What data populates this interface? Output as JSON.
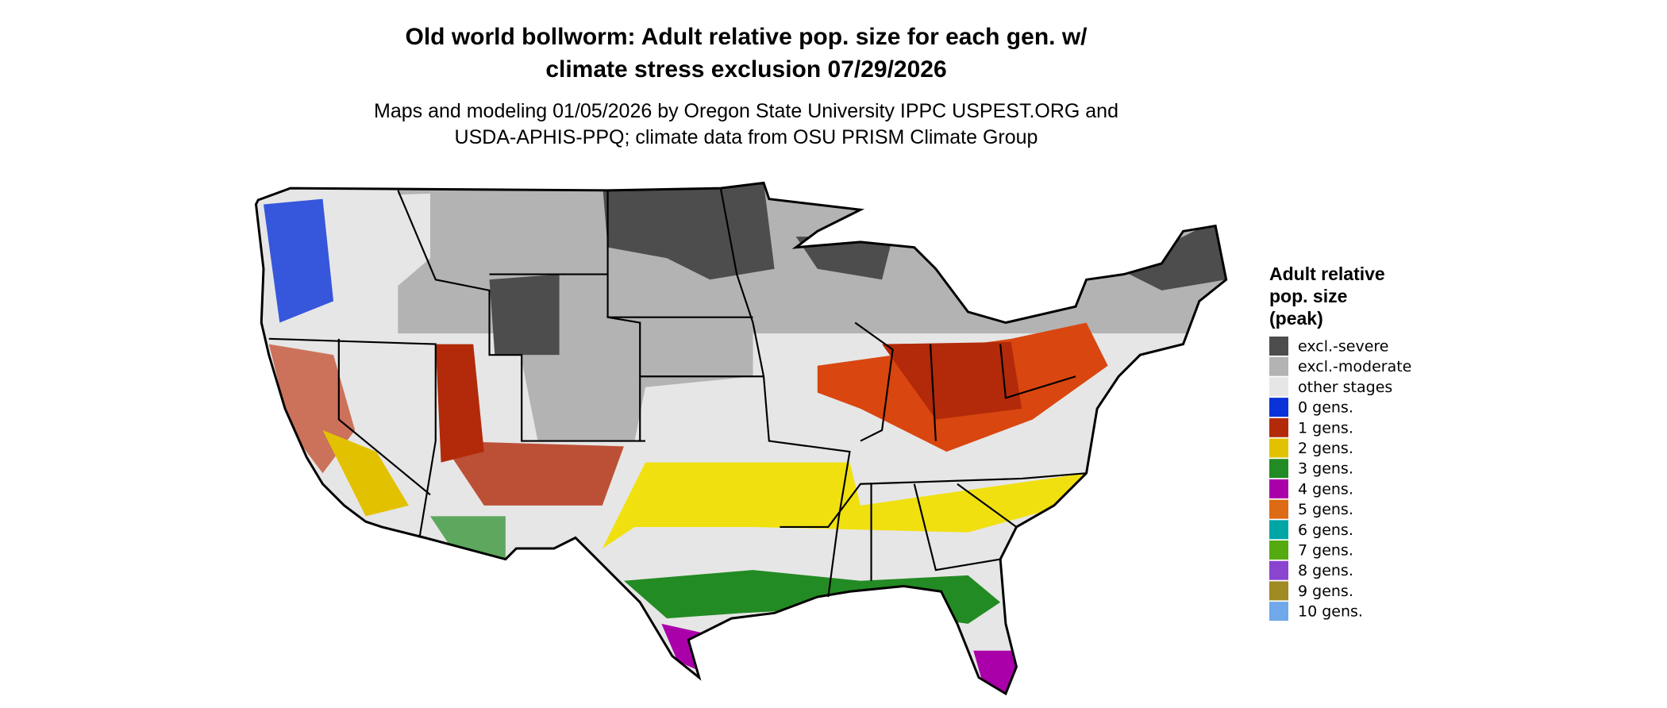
{
  "header": {
    "title": [
      "Old world bollworm: Adult relative pop. size for each gen. w/",
      "climate stress exclusion 07/29/2026"
    ],
    "subtitle": [
      "Maps and modeling 01/05/2026 by Oregon State University IPPC USPEST.ORG and",
      "USDA-APHIS-PPQ; climate data from OSU PRISM Climate Group"
    ]
  },
  "legend": {
    "title": [
      "Adult relative",
      "pop. size",
      "(peak)"
    ],
    "items": [
      {
        "label": "excl.-severe",
        "color": "#4d4d4d"
      },
      {
        "label": "excl.-moderate",
        "color": "#b3b3b3"
      },
      {
        "label": "other stages",
        "color": "#e6e6e6"
      },
      {
        "label": "0 gens.",
        "color": "#0a32d8"
      },
      {
        "label": "1 gens.",
        "color": "#b22a0a"
      },
      {
        "label": "2 gens.",
        "color": "#e2c200"
      },
      {
        "label": "3 gens.",
        "color": "#238b23"
      },
      {
        "label": "4 gens.",
        "color": "#aa00aa"
      },
      {
        "label": "5 gens.",
        "color": "#dd6a14"
      },
      {
        "label": "6 gens.",
        "color": "#00a6a6"
      },
      {
        "label": "7 gens.",
        "color": "#55aa11"
      },
      {
        "label": "8 gens.",
        "color": "#8a44d0"
      },
      {
        "label": "9 gens.",
        "color": "#a08a22"
      },
      {
        "label": "10 gens.",
        "color": "#70a8ea"
      }
    ]
  }
}
